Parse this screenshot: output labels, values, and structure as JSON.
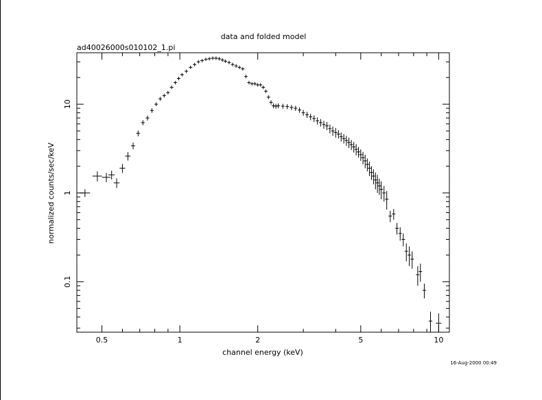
{
  "page": {
    "title": "data and folded model",
    "subtitle": "ad40026000s010102_1.pi",
    "timestamp": "16-Aug-2000 00:49"
  },
  "chart_data": {
    "type": "scatter",
    "title": "data and folded model",
    "subtitle": "ad40026000s010102_1.pi",
    "xlabel": "channel energy (keV)",
    "ylabel": "normalized counts/sec/keV",
    "xscale": "log",
    "yscale": "log",
    "xlim": [
      0.4,
      11.0
    ],
    "ylim": [
      0.027,
      38
    ],
    "grid": false,
    "legend": "none",
    "x_ticks": [
      {
        "value": 0.5,
        "label": "0.5"
      },
      {
        "value": 1,
        "label": "1"
      },
      {
        "value": 2,
        "label": "2"
      },
      {
        "value": 5,
        "label": "5"
      },
      {
        "value": 10,
        "label": "10"
      }
    ],
    "y_ticks": [
      {
        "value": 0.1,
        "label": "0.1"
      },
      {
        "value": 1,
        "label": "1"
      },
      {
        "value": 10,
        "label": "10"
      }
    ],
    "series": [
      {
        "color": "#000000",
        "marker": "crosshair-errorbar",
        "points": [
          [
            0.43,
            1.0,
            0.02,
            0.1
          ],
          [
            0.48,
            1.55,
            0.02,
            0.2
          ],
          [
            0.52,
            1.5,
            0.02,
            0.18
          ],
          [
            0.545,
            1.6,
            0.015,
            0.18
          ],
          [
            0.57,
            1.3,
            0.015,
            0.16
          ],
          [
            0.6,
            1.9,
            0.015,
            0.22
          ],
          [
            0.63,
            2.6,
            0.015,
            0.28
          ],
          [
            0.66,
            3.4,
            0.012,
            0.3
          ],
          [
            0.69,
            4.7,
            0.012,
            0.35
          ],
          [
            0.72,
            6.2,
            0.012,
            0.4
          ],
          [
            0.75,
            7.0,
            0.012,
            0.45
          ],
          [
            0.78,
            8.5,
            0.012,
            0.5
          ],
          [
            0.81,
            10.0,
            0.012,
            0.5
          ],
          [
            0.84,
            11.5,
            0.012,
            0.55
          ],
          [
            0.87,
            12.5,
            0.012,
            0.6
          ],
          [
            0.9,
            13.5,
            0.012,
            0.6
          ],
          [
            0.93,
            15.5,
            0.012,
            0.6
          ],
          [
            0.96,
            17.5,
            0.012,
            0.6
          ],
          [
            0.99,
            19.5,
            0.012,
            0.6
          ],
          [
            1.02,
            21.5,
            0.012,
            0.6
          ],
          [
            1.06,
            23.5,
            0.014,
            0.6
          ],
          [
            1.1,
            26.0,
            0.014,
            0.6
          ],
          [
            1.14,
            28.0,
            0.014,
            0.6
          ],
          [
            1.18,
            30.0,
            0.014,
            0.6
          ],
          [
            1.22,
            31.0,
            0.014,
            0.6
          ],
          [
            1.26,
            32.0,
            0.014,
            0.6
          ],
          [
            1.3,
            32.5,
            0.014,
            0.6
          ],
          [
            1.34,
            33.0,
            0.014,
            0.6
          ],
          [
            1.38,
            33.0,
            0.014,
            0.6
          ],
          [
            1.42,
            32.5,
            0.014,
            0.6
          ],
          [
            1.46,
            31.5,
            0.014,
            0.6
          ],
          [
            1.5,
            30.5,
            0.014,
            0.6
          ],
          [
            1.55,
            29.5,
            0.016,
            0.6
          ],
          [
            1.6,
            28.0,
            0.016,
            0.6
          ],
          [
            1.65,
            27.0,
            0.016,
            0.6
          ],
          [
            1.7,
            26.0,
            0.016,
            0.6
          ],
          [
            1.75,
            25.0,
            0.016,
            0.6
          ],
          [
            1.8,
            20.5,
            0.016,
            0.6
          ],
          [
            1.85,
            17.5,
            0.016,
            0.6
          ],
          [
            1.9,
            17.0,
            0.016,
            0.6
          ],
          [
            1.95,
            17.0,
            0.016,
            0.6
          ],
          [
            2.0,
            16.5,
            0.016,
            0.6
          ],
          [
            2.05,
            16.5,
            0.016,
            0.6
          ],
          [
            2.1,
            15.5,
            0.016,
            0.6
          ],
          [
            2.15,
            14.0,
            0.016,
            0.6
          ],
          [
            2.2,
            12.0,
            0.016,
            0.6
          ],
          [
            2.25,
            10.5,
            0.016,
            0.6
          ],
          [
            2.3,
            9.6,
            0.016,
            0.6
          ],
          [
            2.35,
            9.5,
            0.02,
            0.6
          ],
          [
            2.4,
            9.6,
            0.02,
            0.6
          ],
          [
            2.5,
            9.5,
            0.02,
            0.6
          ],
          [
            2.6,
            9.4,
            0.02,
            0.6
          ],
          [
            2.7,
            9.2,
            0.02,
            0.6
          ],
          [
            2.8,
            9.0,
            0.02,
            0.6
          ],
          [
            2.9,
            8.6,
            0.02,
            0.6
          ],
          [
            3.0,
            8.0,
            0.02,
            0.6
          ],
          [
            3.1,
            7.6,
            0.02,
            0.6
          ],
          [
            3.2,
            7.2,
            0.02,
            0.6
          ],
          [
            3.3,
            6.9,
            0.02,
            0.6
          ],
          [
            3.4,
            6.5,
            0.02,
            0.6
          ],
          [
            3.5,
            6.2,
            0.02,
            0.6
          ],
          [
            3.6,
            5.9,
            0.02,
            0.6
          ],
          [
            3.7,
            5.7,
            0.02,
            0.6
          ],
          [
            3.8,
            5.3,
            0.02,
            0.6
          ],
          [
            3.9,
            5.0,
            0.02,
            0.6
          ],
          [
            4.0,
            4.8,
            0.02,
            0.6
          ],
          [
            4.1,
            4.6,
            0.02,
            0.5
          ],
          [
            4.2,
            4.3,
            0.02,
            0.5
          ],
          [
            4.3,
            4.1,
            0.02,
            0.5
          ],
          [
            4.4,
            3.9,
            0.02,
            0.5
          ],
          [
            4.5,
            3.7,
            0.02,
            0.5
          ],
          [
            4.6,
            3.5,
            0.02,
            0.45
          ],
          [
            4.7,
            3.3,
            0.02,
            0.45
          ],
          [
            4.8,
            3.1,
            0.02,
            0.45
          ],
          [
            4.9,
            2.9,
            0.02,
            0.4
          ],
          [
            5.0,
            2.7,
            0.02,
            0.4
          ],
          [
            5.1,
            2.5,
            0.02,
            0.4
          ],
          [
            5.2,
            2.3,
            0.02,
            0.4
          ],
          [
            5.3,
            2.1,
            0.02,
            0.35
          ],
          [
            5.4,
            1.9,
            0.02,
            0.35
          ],
          [
            5.5,
            1.7,
            0.02,
            0.3
          ],
          [
            5.6,
            1.55,
            0.02,
            0.3
          ],
          [
            5.7,
            1.4,
            0.02,
            0.3
          ],
          [
            5.8,
            1.3,
            0.02,
            0.3
          ],
          [
            5.9,
            1.2,
            0.02,
            0.25
          ],
          [
            6.0,
            1.1,
            0.02,
            0.25
          ],
          [
            6.15,
            1.0,
            0.03,
            0.2
          ],
          [
            6.3,
            0.85,
            0.03,
            0.2
          ],
          [
            6.5,
            0.55,
            0.05,
            0.08
          ],
          [
            6.7,
            0.58,
            0.05,
            0.08
          ],
          [
            6.9,
            0.4,
            0.05,
            0.06
          ],
          [
            7.1,
            0.35,
            0.05,
            0.06
          ],
          [
            7.3,
            0.3,
            0.05,
            0.05
          ],
          [
            7.5,
            0.22,
            0.05,
            0.05
          ],
          [
            7.7,
            0.2,
            0.05,
            0.05
          ],
          [
            7.9,
            0.18,
            0.05,
            0.04
          ],
          [
            8.3,
            0.12,
            0.08,
            0.03
          ],
          [
            8.5,
            0.13,
            0.08,
            0.03
          ],
          [
            8.8,
            0.08,
            0.08,
            0.015
          ],
          [
            9.3,
            0.036,
            0.15,
            0.01
          ],
          [
            10.0,
            0.034,
            0.25,
            0.01
          ]
        ]
      }
    ]
  }
}
